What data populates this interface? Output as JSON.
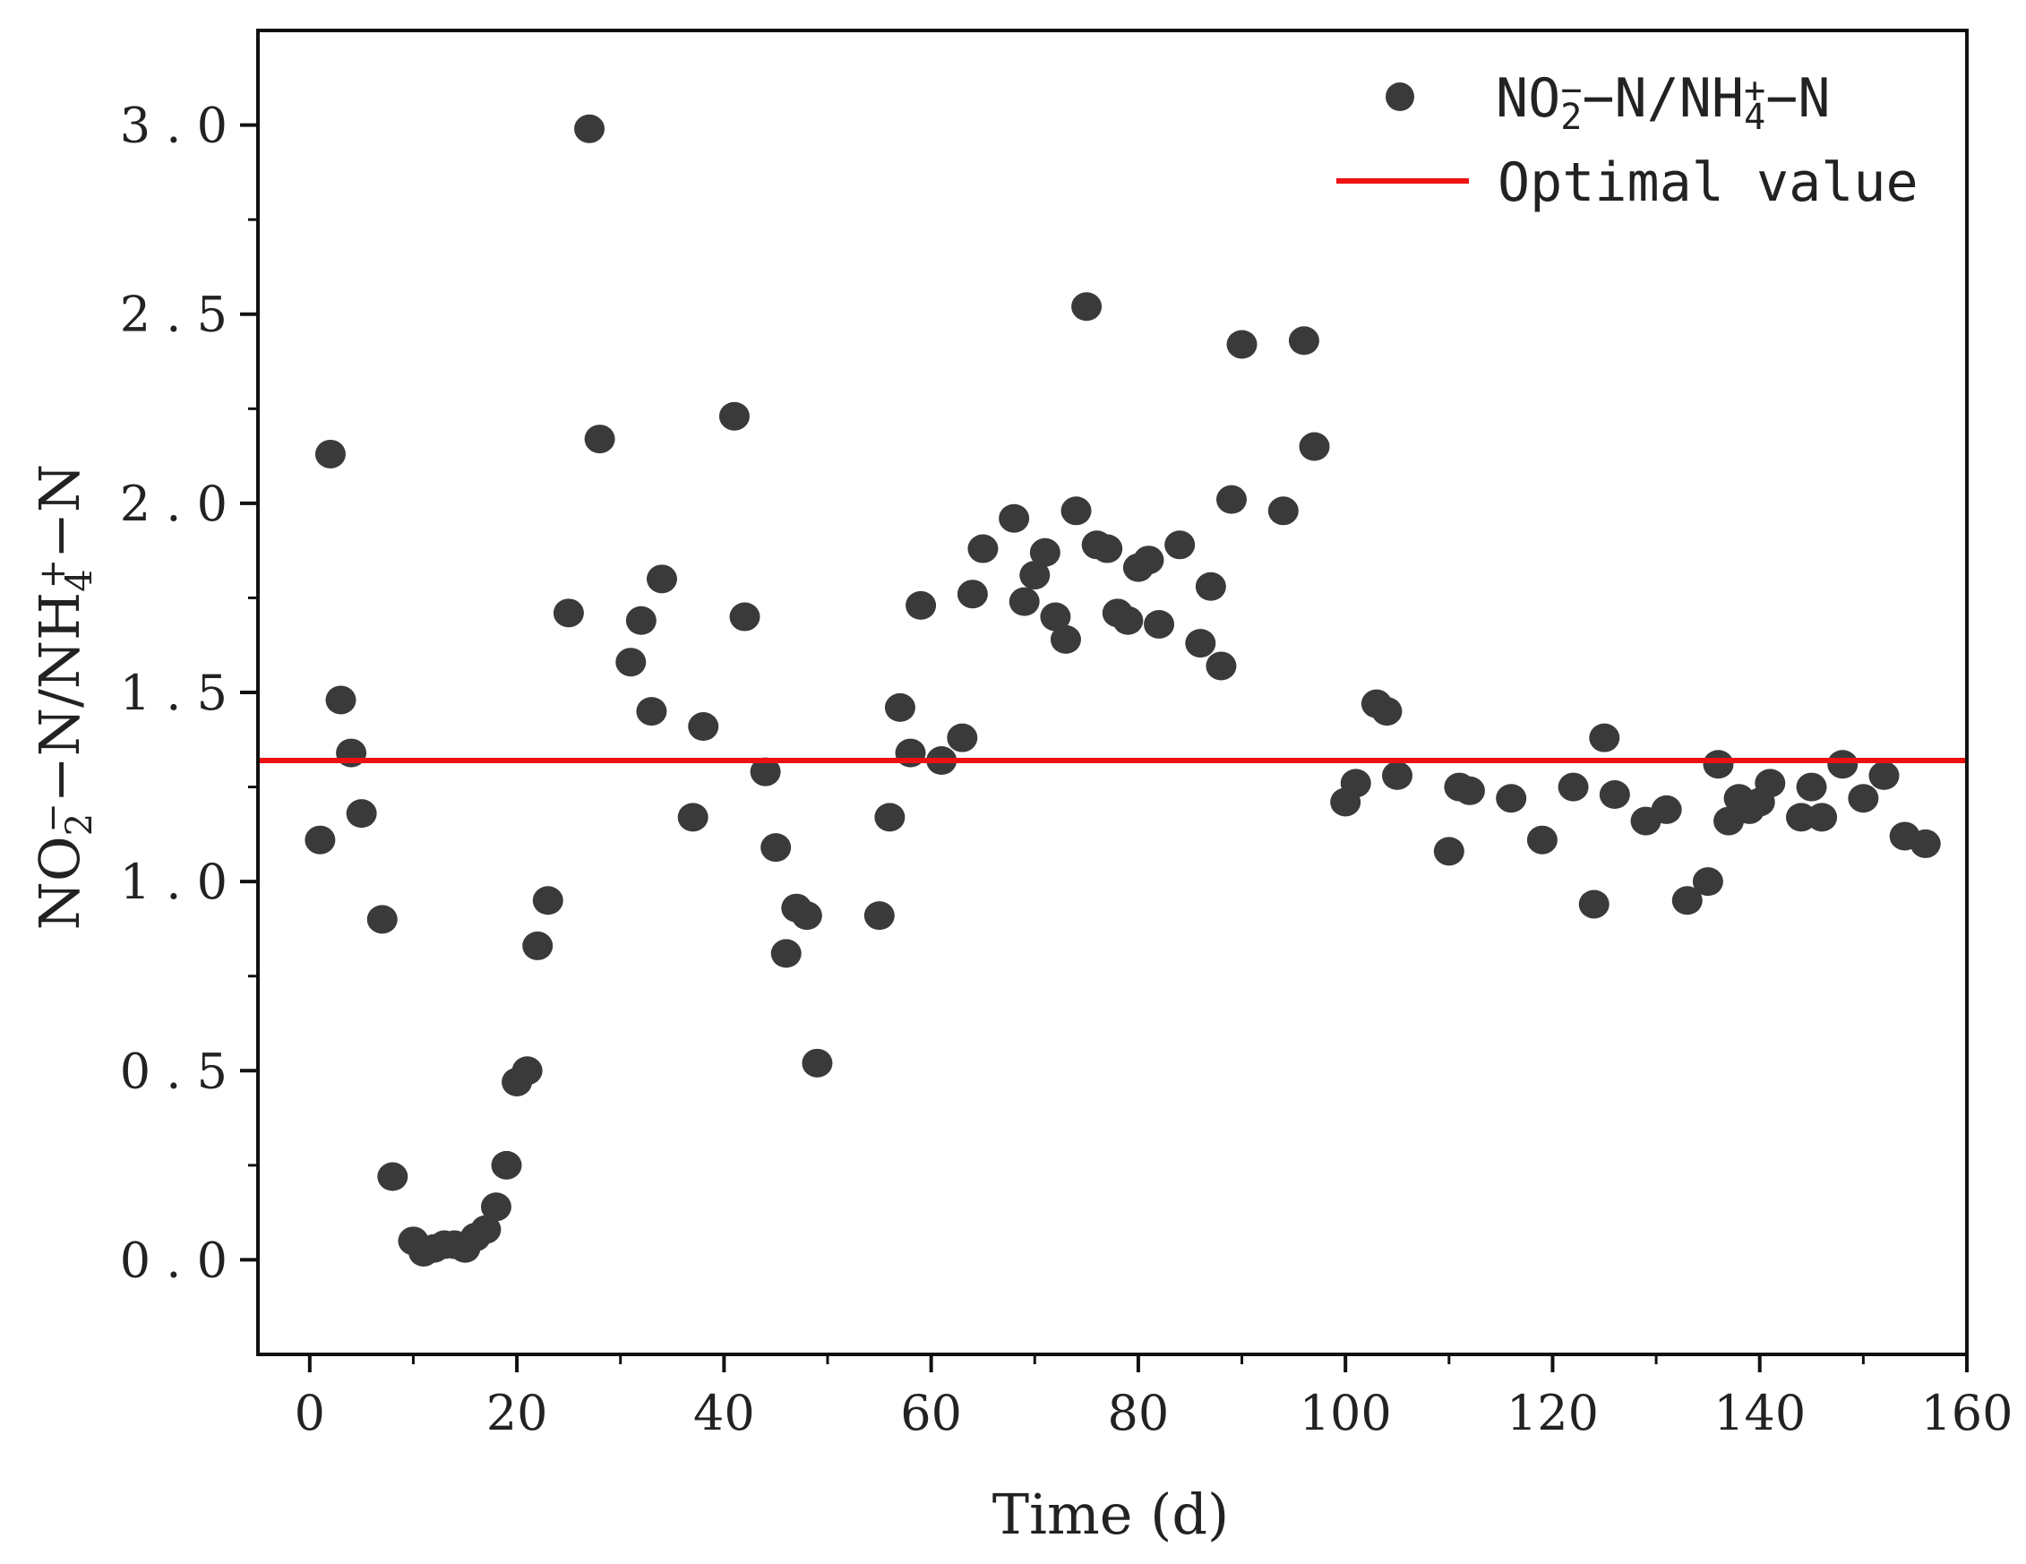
{
  "chart_data": {
    "type": "scatter",
    "title": "",
    "xlabel": "Time (d)",
    "ylabel": {
      "parts": [
        "NO",
        "2",
        "−",
        "−N/NH",
        "4",
        "+",
        "−N"
      ]
    },
    "xlim": [
      -5,
      160
    ],
    "ylim": [
      -0.25,
      3.25
    ],
    "xticks": [
      "0",
      "20",
      "40",
      "60",
      "80",
      "100",
      "120",
      "140",
      "160"
    ],
    "yticks": [
      "0.0",
      "0.5",
      "1.0",
      "1.5",
      "2.0",
      "2.5",
      "3.0"
    ],
    "grid": false,
    "legend_position": "top-right",
    "colors": {
      "points": "#3a3a3a",
      "line": "#ee1111",
      "axis": "#111111"
    },
    "series": [
      {
        "name": "NO2−-N/NH4+-N",
        "label_parts": [
          "NO",
          "2",
          "−",
          "−N/NH",
          "4",
          "+",
          "−N"
        ],
        "kind": "scatter",
        "x": [
          1,
          2,
          3,
          4,
          5,
          7,
          8,
          10,
          11,
          12,
          13,
          14,
          15,
          16,
          17,
          18,
          19,
          20,
          21,
          22,
          23,
          25,
          27,
          28,
          31,
          32,
          33,
          34,
          37,
          38,
          41,
          42,
          44,
          45,
          46,
          47,
          48,
          49,
          55,
          56,
          57,
          58,
          59,
          61,
          63,
          64,
          65,
          68,
          69,
          70,
          71,
          72,
          73,
          74,
          75,
          76,
          77,
          78,
          79,
          80,
          81,
          82,
          84,
          86,
          87,
          88,
          89,
          90,
          94,
          96,
          97,
          100,
          101,
          103,
          104,
          105,
          110,
          111,
          112,
          116,
          119,
          122,
          124,
          125,
          126,
          129,
          131,
          133,
          135,
          136,
          137,
          138,
          139,
          140,
          141,
          144,
          145,
          146,
          148,
          150,
          152,
          154,
          156
        ],
        "y": [
          1.11,
          2.13,
          1.48,
          1.34,
          1.18,
          0.9,
          0.22,
          0.05,
          0.02,
          0.03,
          0.04,
          0.04,
          0.03,
          0.06,
          0.08,
          0.14,
          0.25,
          0.47,
          0.5,
          0.83,
          0.95,
          1.71,
          2.99,
          2.17,
          1.58,
          1.69,
          1.45,
          1.8,
          1.17,
          1.41,
          2.23,
          1.7,
          1.29,
          1.09,
          0.81,
          0.93,
          0.91,
          0.52,
          0.91,
          1.17,
          1.46,
          1.34,
          1.73,
          1.32,
          1.38,
          1.76,
          1.88,
          1.96,
          1.74,
          1.81,
          1.87,
          1.7,
          1.64,
          1.98,
          2.52,
          1.89,
          1.88,
          1.71,
          1.69,
          1.83,
          1.85,
          1.68,
          1.89,
          1.63,
          1.78,
          1.57,
          2.01,
          2.42,
          1.98,
          2.43,
          2.15,
          1.21,
          1.26,
          1.47,
          1.45,
          1.28,
          1.08,
          1.25,
          1.24,
          1.22,
          1.11,
          1.25,
          0.94,
          1.38,
          1.23,
          1.16,
          1.19,
          0.95,
          1.0,
          1.31,
          1.16,
          1.22,
          1.19,
          1.21,
          1.26,
          1.17,
          1.25,
          1.17,
          1.31,
          1.22,
          1.28,
          1.12,
          1.1
        ]
      },
      {
        "name": "Optimal value",
        "kind": "hline",
        "y": 1.32
      }
    ]
  }
}
